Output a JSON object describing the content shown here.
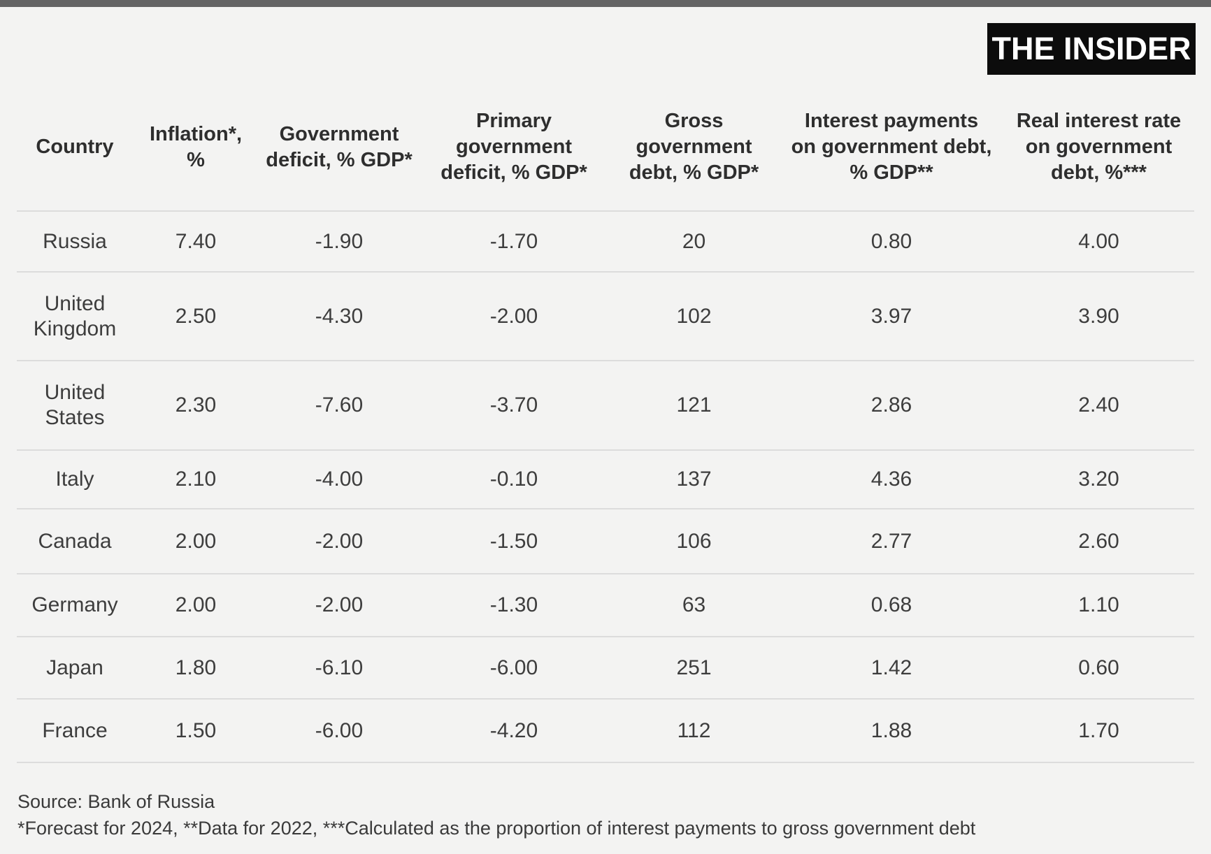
{
  "page": {
    "background_color": "#f3f3f2",
    "top_bar_color": "#646464",
    "separator_color": "#dcdcdc"
  },
  "brand": {
    "logo_text": "THE INSIDER",
    "logo_bg": "#0c0c0c",
    "logo_text_color": "#ffffff"
  },
  "table": {
    "headers": [
      "Country",
      "Inflation*,\n%",
      "Government\ndeficit, % GDP*",
      "Primary\ngovernment\ndeficit, % GDP*",
      "Gross\ngovernment\ndebt, % GDP*",
      "Interest payments\non government debt,\n% GDP**",
      "Real interest rate\non government\ndebt, %***"
    ],
    "rows": [
      {
        "country": "Russia",
        "inflation": "7.40",
        "gov_deficit": "-1.90",
        "primary_deficit": "-1.70",
        "gross_debt": "20",
        "interest_payments": "0.80",
        "real_rate": "4.00"
      },
      {
        "country": "United Kingdom",
        "inflation": "2.50",
        "gov_deficit": "-4.30",
        "primary_deficit": "-2.00",
        "gross_debt": "102",
        "interest_payments": "3.97",
        "real_rate": "3.90"
      },
      {
        "country": "United States",
        "inflation": "2.30",
        "gov_deficit": "-7.60",
        "primary_deficit": "-3.70",
        "gross_debt": "121",
        "interest_payments": "2.86",
        "real_rate": "2.40"
      },
      {
        "country": "Italy",
        "inflation": "2.10",
        "gov_deficit": "-4.00",
        "primary_deficit": "-0.10",
        "gross_debt": "137",
        "interest_payments": "4.36",
        "real_rate": "3.20"
      },
      {
        "country": "Canada",
        "inflation": "2.00",
        "gov_deficit": "-2.00",
        "primary_deficit": "-1.50",
        "gross_debt": "106",
        "interest_payments": "2.77",
        "real_rate": "2.60"
      },
      {
        "country": "Germany",
        "inflation": "2.00",
        "gov_deficit": "-2.00",
        "primary_deficit": "-1.30",
        "gross_debt": "63",
        "interest_payments": "0.68",
        "real_rate": "1.10"
      },
      {
        "country": "Japan",
        "inflation": "1.80",
        "gov_deficit": "-6.10",
        "primary_deficit": "-6.00",
        "gross_debt": "251",
        "interest_payments": "1.42",
        "real_rate": "0.60"
      },
      {
        "country": "France",
        "inflation": "1.50",
        "gov_deficit": "-6.00",
        "primary_deficit": "-4.20",
        "gross_debt": "112",
        "interest_payments": "1.88",
        "real_rate": "1.70"
      }
    ]
  },
  "footer": {
    "source": "Source: Bank of Russia",
    "notes": "*Forecast for 2024, **Data for 2022, ***Calculated as the proportion of interest payments to gross government debt"
  },
  "chart_data": {
    "type": "table",
    "columns": [
      "Country",
      "Inflation*, %",
      "Government deficit, % GDP*",
      "Primary government deficit, % GDP*",
      "Gross government debt, % GDP*",
      "Interest payments on government debt, % GDP**",
      "Real interest rate on government debt, %***"
    ],
    "rows": [
      [
        "Russia",
        7.4,
        -1.9,
        -1.7,
        20,
        0.8,
        4.0
      ],
      [
        "United Kingdom",
        2.5,
        -4.3,
        -2.0,
        102,
        3.97,
        3.9
      ],
      [
        "United States",
        2.3,
        -7.6,
        -3.7,
        121,
        2.86,
        2.4
      ],
      [
        "Italy",
        2.1,
        -4.0,
        -0.1,
        137,
        4.36,
        3.2
      ],
      [
        "Canada",
        2.0,
        -2.0,
        -1.5,
        106,
        2.77,
        2.6
      ],
      [
        "Germany",
        2.0,
        -2.0,
        -1.3,
        63,
        0.68,
        1.1
      ],
      [
        "Japan",
        1.8,
        -6.1,
        -6.0,
        251,
        1.42,
        0.6
      ],
      [
        "France",
        1.5,
        -6.0,
        -4.2,
        112,
        1.88,
        1.7
      ]
    ],
    "source": "Bank of Russia",
    "footnotes": [
      "*Forecast for 2024",
      "**Data for 2022",
      "***Calculated as the proportion of interest payments to gross government debt"
    ],
    "legend_position": "none",
    "grid": "horizontal-row-separators"
  }
}
